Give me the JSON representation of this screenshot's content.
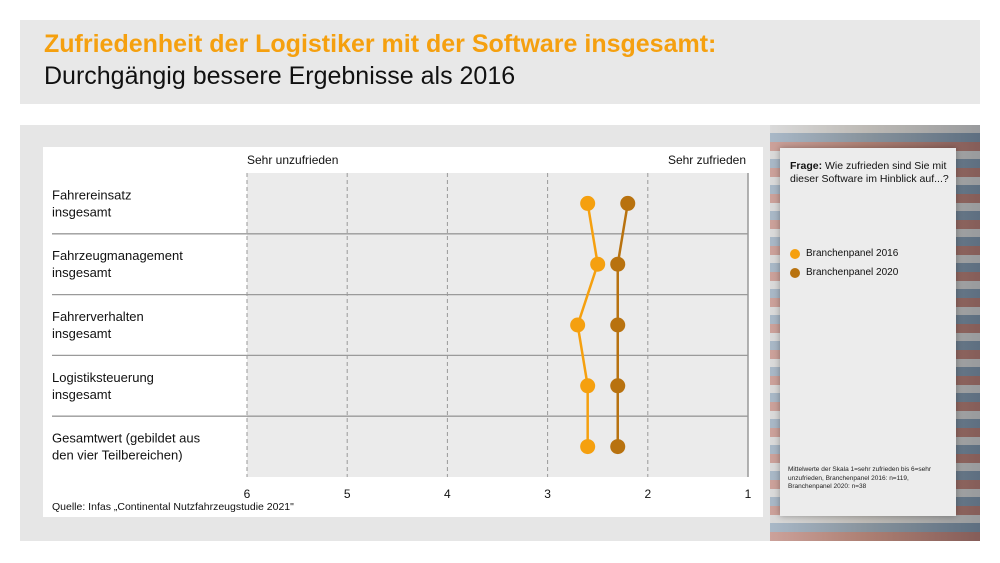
{
  "header": {
    "title": "Zufriedenheit der Logistiker mit der Software insgesamt:",
    "subtitle": "Durchgängig bessere Ergebnisse als 2016"
  },
  "source": "Quelle: Infas „Continental Nutzfahrzeugstudie 2021\"",
  "legend_box": {
    "question_bold": "Frage:",
    "question": " Wie zufrieden sind Sie mit dieser Software im Hinblick auf...?",
    "note": "Mittelwerte der Skala 1=sehr zufrieden bis 6=sehr unzufrieden, Branchenpanel 2016: n=119, Branchenpanel 2020: n=38"
  },
  "chart_data": {
    "type": "line",
    "orientation": "horizontal",
    "xlim": [
      6,
      1
    ],
    "x_ticks": [
      "6",
      "5",
      "4",
      "3",
      "2",
      "1"
    ],
    "scale_left_label": "Sehr unzufrieden",
    "scale_right_label": "Sehr zufrieden",
    "grid": true,
    "legend_placement": "right",
    "categories": [
      [
        "Fahrereinsatz",
        "insgesamt"
      ],
      [
        "Fahrzeugmanagement",
        "insgesamt"
      ],
      [
        "Fahrerverhalten",
        "insgesamt"
      ],
      [
        "Logistiksteuerung",
        "insgesamt"
      ],
      [
        "Gesamtwert (gebildet aus",
        "den vier Teilbereichen)"
      ]
    ],
    "series": [
      {
        "name": "Branchenpanel 2016",
        "color": "#f5a00f",
        "values": [
          2.6,
          2.5,
          2.7,
          2.6,
          2.6
        ]
      },
      {
        "name": "Branchenpanel 2020",
        "color": "#b8720f",
        "values": [
          2.2,
          2.3,
          2.3,
          2.3,
          2.3
        ]
      }
    ]
  }
}
